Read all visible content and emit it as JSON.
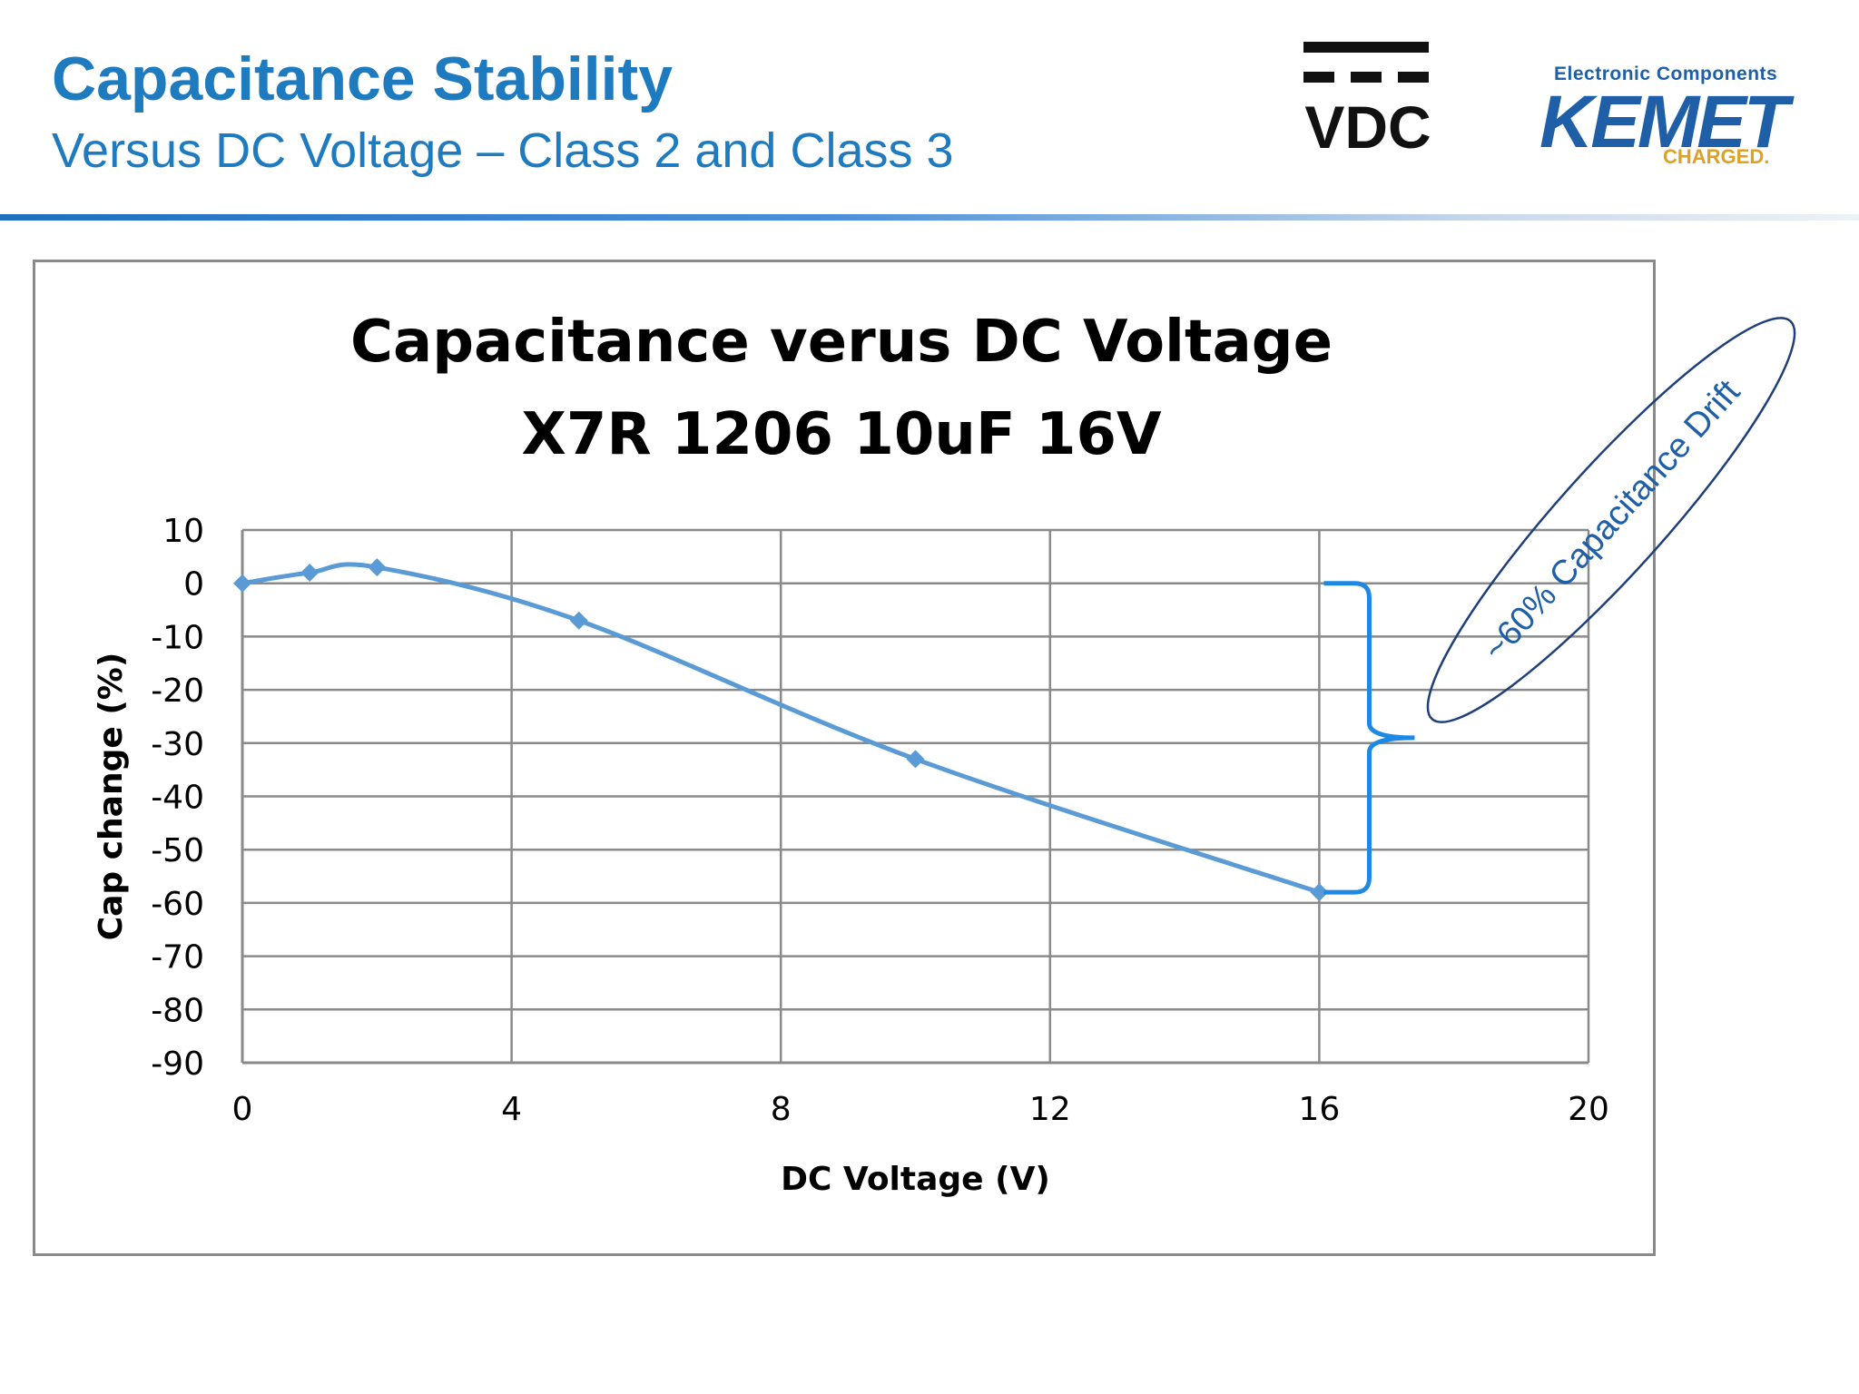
{
  "header": {
    "title": "Capacitance Stability",
    "subtitle": "Versus DC Voltage – Class 2 and Class 3"
  },
  "logos": {
    "vdc": "VDC",
    "kemet_tagline": "Electronic Components",
    "kemet_name": "KEMET",
    "kemet_slogan": "CHARGED."
  },
  "colors": {
    "brand_blue": "#1e7bbf",
    "series_line": "#5b9bd5",
    "bracket": "#1e88e5",
    "callout_border": "#1e3f7a",
    "kemet_orange": "#e0a020"
  },
  "chart_data": {
    "type": "line",
    "title": [
      "Capacitance verus DC Voltage",
      "X7R 1206 10uF 16V"
    ],
    "xlabel": "DC Voltage (V)",
    "ylabel": "Cap change (%)",
    "xlim": [
      0,
      20
    ],
    "ylim": [
      -90,
      10
    ],
    "xticks": [
      0,
      4,
      8,
      12,
      16,
      20
    ],
    "yticks": [
      10,
      0,
      -10,
      -20,
      -30,
      -40,
      -50,
      -60,
      -70,
      -80,
      -90
    ],
    "grid": true,
    "smooth": true,
    "marker": "diamond",
    "series": [
      {
        "x": [
          0,
          1,
          2,
          5,
          10,
          16
        ],
        "y": [
          0,
          2,
          3,
          -7,
          -33,
          -58
        ]
      }
    ],
    "annotation": {
      "text": "~60% Capacitance Drift",
      "bracket_y_range": [
        0,
        -58
      ],
      "bracket_x": 16.5
    }
  }
}
